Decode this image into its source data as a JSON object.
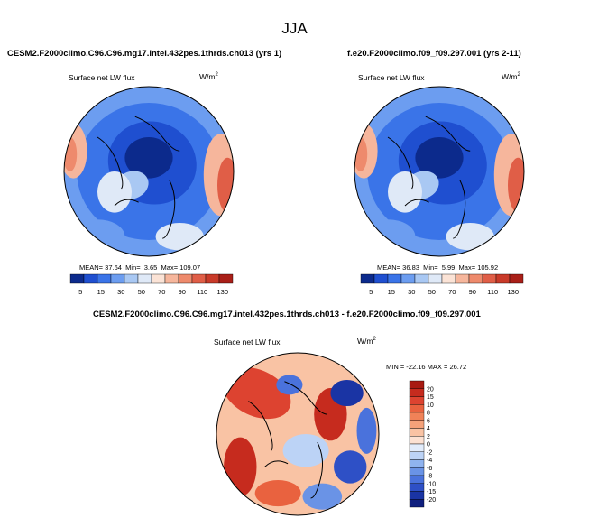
{
  "page_title": "JJA",
  "chart_data": [
    {
      "type": "heatmap",
      "projection": "north-polar-stereographic",
      "title": "CESM2.F2000climo.C96.C96.mg17.intel.432pes.1thrds.ch013 (yrs 1)",
      "variable": "Surface net LW flux",
      "units_base": "W/m",
      "units_exp": "2",
      "stats": {
        "mean_label": "MEAN=",
        "mean": "37.64",
        "min_label": "Min=",
        "min": "3.65",
        "max_label": "Max=",
        "max": "109.07"
      },
      "colorbar_labels": [
        "5",
        "15",
        "30",
        "50",
        "70",
        "90",
        "110",
        "130"
      ],
      "colorbar_colors": [
        "#0c2a8c",
        "#1f4fd0",
        "#3a74e8",
        "#6c9df0",
        "#a9c8f3",
        "#dfe9f7",
        "#fbe3d6",
        "#f6b69c",
        "#ee8a6c",
        "#e05e47",
        "#c93a29",
        "#a91f18"
      ],
      "colorbar_orientation": "horizontal"
    },
    {
      "type": "heatmap",
      "projection": "north-polar-stereographic",
      "title": "f.e20.F2000climo.f09_f09.297.001 (yrs 2-11)",
      "variable": "Surface net LW flux",
      "units_base": "W/m",
      "units_exp": "2",
      "stats": {
        "mean_label": "MEAN=",
        "mean": "36.83",
        "min_label": "Min=",
        "min": "5.99",
        "max_label": "Max=",
        "max": "105.92"
      },
      "colorbar_labels": [
        "5",
        "15",
        "30",
        "50",
        "70",
        "90",
        "110",
        "130"
      ],
      "colorbar_colors": [
        "#0c2a8c",
        "#1f4fd0",
        "#3a74e8",
        "#6c9df0",
        "#a9c8f3",
        "#dfe9f7",
        "#fbe3d6",
        "#f6b69c",
        "#ee8a6c",
        "#e05e47",
        "#c93a29",
        "#a91f18"
      ],
      "colorbar_orientation": "horizontal"
    },
    {
      "type": "heatmap",
      "projection": "north-polar-stereographic",
      "title": "CESM2.F2000climo.C96.C96.mg17.intel.432pes.1thrds.ch013 - f.e20.F2000climo.f09_f09.297.001",
      "variable": "Surface net LW flux",
      "units_base": "W/m",
      "units_exp": "2",
      "stats": {
        "text": "MIN = -22.16  MAX =  26.72"
      },
      "colorbar_labels": [
        "20",
        "15",
        "10",
        "8",
        "6",
        "4",
        "2",
        "0",
        "-2",
        "-4",
        "-6",
        "-8",
        "-10",
        "-15",
        "-20"
      ],
      "colorbar_colors": [
        "#a81a12",
        "#c62b1e",
        "#dd4330",
        "#e9623f",
        "#f08258",
        "#f5a27a",
        "#f9c3a4",
        "#fce1d2",
        "#e2ecfb",
        "#bcd3f6",
        "#8fb3ef",
        "#6a93e6",
        "#4a72dc",
        "#2e50c6",
        "#1a34a4",
        "#0f1f7e"
      ],
      "colorbar_orientation": "vertical"
    }
  ],
  "colors": {
    "land_outline": "#000000",
    "background": "#ffffff"
  }
}
